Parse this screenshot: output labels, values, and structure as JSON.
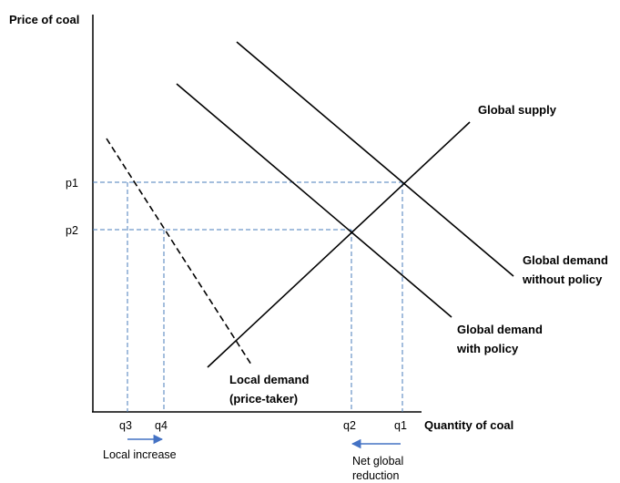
{
  "chart_data": {
    "type": "line",
    "title": "",
    "xlabel": "Quantity of coal",
    "ylabel": "Price of coal",
    "grid": false,
    "x_ticks": [
      "q3",
      "q4",
      "q2",
      "q1"
    ],
    "y_ticks": [
      "p1",
      "p2"
    ],
    "series": [
      {
        "name": "Global supply",
        "style": "solid"
      },
      {
        "name": "Global demand without policy",
        "name_lines": [
          "Global demand",
          "without policy"
        ],
        "style": "solid"
      },
      {
        "name": "Global demand with policy",
        "name_lines": [
          "Global demand",
          "with policy"
        ],
        "style": "solid"
      },
      {
        "name": "Local demand (price-taker)",
        "name_lines": [
          "Local demand",
          "(price-taker)"
        ],
        "style": "dashed"
      }
    ],
    "annotations": [
      {
        "text": "Local increase",
        "arrow": "right"
      },
      {
        "text": "Net global reduction",
        "text_lines": [
          "Net global",
          "reduction"
        ],
        "arrow": "left"
      }
    ],
    "colors": {
      "axis": "#000000",
      "curves": "#000000",
      "guides": "#4a7ebb",
      "arrows": "#4472c4"
    }
  }
}
